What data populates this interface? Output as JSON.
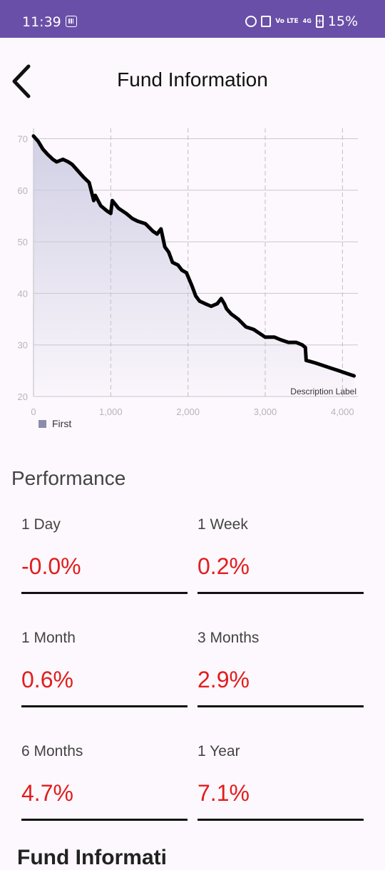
{
  "status_bar": {
    "time": "11:39",
    "battery": "15%",
    "network": "4G",
    "volte": "Vo LTE",
    "icons": [
      "grid-icon",
      "alarm-icon",
      "vibrate-icon",
      "volte-icon",
      "signal-4g-icon",
      "battery-icon"
    ]
  },
  "header": {
    "title": "Fund Information",
    "back_icon": "chevron-left-icon"
  },
  "chart_data": {
    "type": "area",
    "series": [
      {
        "name": "First",
        "x": [
          0,
          60,
          120,
          180,
          250,
          300,
          380,
          450,
          500,
          560,
          650,
          720,
          780,
          800,
          870,
          950,
          1000,
          1020,
          1100,
          1200,
          1280,
          1350,
          1450,
          1550,
          1600,
          1650,
          1700,
          1750,
          1800,
          1870,
          1920,
          1980,
          2050,
          2100,
          2150,
          2220,
          2300,
          2380,
          2430,
          2470,
          2500,
          2560,
          2650,
          2750,
          2850,
          2950,
          3000,
          3050,
          3120,
          3200,
          3300,
          3400,
          3480,
          3520,
          3530,
          3580,
          3650,
          3750,
          3850,
          3950,
          4050,
          4150
        ],
        "y": [
          70.5,
          69.5,
          68,
          67,
          66,
          65.5,
          66,
          65.5,
          65,
          64,
          62.5,
          61.5,
          58,
          59,
          57,
          56,
          55.5,
          58,
          56.5,
          55.5,
          54.5,
          54,
          53.5,
          52,
          51.5,
          52.5,
          49,
          48,
          46,
          45.5,
          44.5,
          44,
          41.5,
          39.5,
          38.5,
          38,
          37.5,
          38,
          39,
          38,
          37,
          36,
          35,
          33.5,
          33,
          32,
          31.5,
          31.5,
          31.5,
          31,
          30.5,
          30.5,
          30,
          29.5,
          27,
          26.8,
          26.5,
          26,
          25.5,
          25,
          24.5,
          24
        ]
      }
    ],
    "xlim": [
      0,
      4200
    ],
    "ylim": [
      20,
      72
    ],
    "x_ticks": [
      "0",
      "1,000",
      "2,000",
      "3,000",
      "4,000"
    ],
    "x_tick_values": [
      0,
      1000,
      2000,
      3000,
      4000
    ],
    "y_ticks": [
      "20",
      "30",
      "40",
      "50",
      "60",
      "70"
    ],
    "y_tick_values": [
      20,
      30,
      40,
      50,
      60,
      70
    ],
    "description": "Description Label",
    "legend": "bottom-left",
    "grid": true,
    "colors": {
      "line": "#000000",
      "fill": "#c9c9e0",
      "legend": "#8b8bac"
    }
  },
  "performance": {
    "title": "Performance",
    "items": [
      {
        "label": "1 Day",
        "value": "-0.0%"
      },
      {
        "label": "1 Week",
        "value": "0.2%"
      },
      {
        "label": "1 Month",
        "value": "0.6%"
      },
      {
        "label": "3 Months",
        "value": "2.9%"
      },
      {
        "label": "6 Months",
        "value": "4.7%"
      },
      {
        "label": "1 Year",
        "value": "7.1%"
      }
    ],
    "value_color": "#e11d1d"
  },
  "next_section": {
    "title": "Fund Informati"
  }
}
